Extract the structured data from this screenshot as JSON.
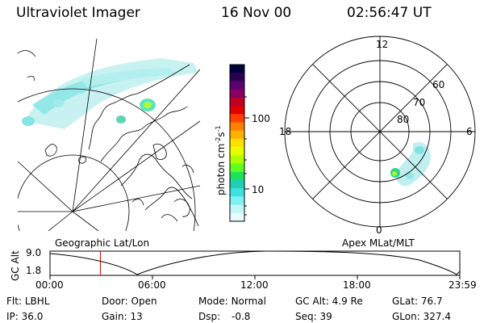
{
  "header": {
    "title": "Ultraviolet Imager",
    "date": "16 Nov 00",
    "time": "02:56:47 UT"
  },
  "left_panel": {
    "caption": "Geographic Lat/Lon"
  },
  "right_panel": {
    "caption": "Apex MLat/MLT",
    "mlt_labels": {
      "top": "12",
      "bottom": "0",
      "left": "18",
      "right": "6"
    },
    "lat_labels": [
      "60",
      "70",
      "80"
    ]
  },
  "colorbar": {
    "label": "photon cm",
    "label_sup1": "-2",
    "label_s": "s",
    "label_sup2": "-1",
    "ticks": [
      "100",
      "10"
    ],
    "tick_values": [
      100,
      10
    ],
    "colors": [
      "#000040",
      "#2a0050",
      "#5a0070",
      "#8a0060",
      "#c00020",
      "#e00000",
      "#ff4000",
      "#ff8000",
      "#ffb000",
      "#ffe000",
      "#e8ff00",
      "#b0ff00",
      "#60ff20",
      "#20e060",
      "#20d0b0",
      "#40e0e0",
      "#80f0f0",
      "#c0f8f8",
      "#e8fcfc"
    ]
  },
  "altitude_plot": {
    "ylabel": "GC Alt",
    "y_ticks": [
      "9.0",
      "1.8"
    ],
    "x_ticks": [
      "00:00",
      "06:00",
      "12:00",
      "18:00",
      "23:59"
    ],
    "current_time_marker_hours": 2.95,
    "marker_color": "#cc0000"
  },
  "info": {
    "row1": [
      {
        "label": "Flt:",
        "value": "LBHL"
      },
      {
        "label": "Door:",
        "value": "Open"
      },
      {
        "label": "Mode:",
        "value": "Normal"
      },
      {
        "label": "GC Alt:",
        "value": "4.9 Re"
      },
      {
        "label": "GLat:",
        "value": "76.7"
      }
    ],
    "row2": [
      {
        "label": "IP:",
        "value": "36.0"
      },
      {
        "label": "Gain:",
        "value": "13"
      },
      {
        "label": "Dsp:",
        "value": "-0.8"
      },
      {
        "label": "Seq:",
        "value": "39"
      },
      {
        "label": "GLon:",
        "value": "327.4"
      }
    ]
  }
}
